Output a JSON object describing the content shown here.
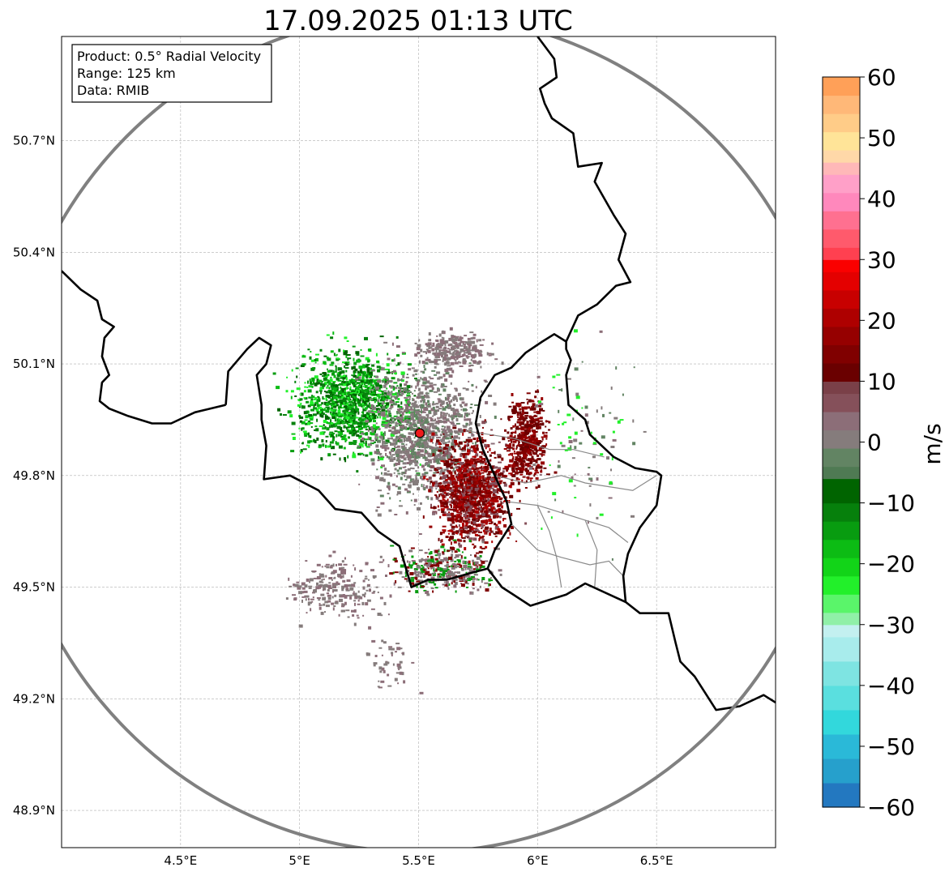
{
  "title": "17.09.2025 01:13 UTC",
  "info_box": {
    "product": "Product: 0.5° Radial Velocity",
    "range": "Range: 125 km",
    "data": "Data: RMIB"
  },
  "map": {
    "lon_range": [
      4.0,
      7.0
    ],
    "lat_range": [
      48.8,
      50.98
    ],
    "radar_site": {
      "lon": 5.505,
      "lat": 49.914
    },
    "range_ring_km": 125,
    "x_ticks": [
      {
        "value": 4.5,
        "label": "4.5°E"
      },
      {
        "value": 5.0,
        "label": "5°E"
      },
      {
        "value": 5.5,
        "label": "5.5°E"
      },
      {
        "value": 6.0,
        "label": "6°E"
      },
      {
        "value": 6.5,
        "label": "6.5°E"
      }
    ],
    "y_ticks": [
      {
        "value": 50.7,
        "label": "50.7°N"
      },
      {
        "value": 50.4,
        "label": "50.4°N"
      },
      {
        "value": 50.1,
        "label": "50.1°N"
      },
      {
        "value": 49.8,
        "label": "49.8°N"
      },
      {
        "value": 49.5,
        "label": "49.5°N"
      },
      {
        "value": 49.2,
        "label": "49.2°N"
      },
      {
        "value": 48.9,
        "label": "48.9°N"
      }
    ],
    "borders": [
      [
        [
          4.0,
          50.35
        ],
        [
          4.08,
          50.3
        ],
        [
          4.15,
          50.27
        ],
        [
          4.17,
          50.22
        ],
        [
          4.22,
          50.2
        ],
        [
          4.18,
          50.17
        ],
        [
          4.17,
          50.12
        ],
        [
          4.2,
          50.07
        ],
        [
          4.17,
          50.05
        ],
        [
          4.16,
          50.0
        ],
        [
          4.2,
          49.98
        ],
        [
          4.28,
          49.96
        ],
        [
          4.38,
          49.94
        ],
        [
          4.46,
          49.94
        ],
        [
          4.56,
          49.97
        ],
        [
          4.69,
          49.99
        ]
      ],
      [
        [
          4.69,
          49.99
        ],
        [
          4.7,
          50.08
        ],
        [
          4.78,
          50.14
        ],
        [
          4.83,
          50.17
        ],
        [
          4.88,
          50.15
        ],
        [
          4.86,
          50.1
        ],
        [
          4.82,
          50.07
        ],
        [
          4.84,
          49.99
        ],
        [
          4.84,
          49.95
        ],
        [
          4.86,
          49.88
        ],
        [
          4.85,
          49.79
        ],
        [
          4.96,
          49.8
        ],
        [
          5.08,
          49.76
        ],
        [
          5.15,
          49.71
        ],
        [
          5.26,
          49.7
        ],
        [
          5.33,
          49.65
        ],
        [
          5.42,
          49.61
        ],
        [
          5.47,
          49.5
        ],
        [
          5.54,
          49.52
        ],
        [
          5.62,
          49.52
        ],
        [
          5.73,
          49.54
        ],
        [
          5.79,
          49.55
        ],
        [
          5.85,
          49.5
        ],
        [
          5.97,
          49.45
        ],
        [
          6.12,
          49.48
        ],
        [
          6.2,
          49.51
        ],
        [
          6.37,
          49.46
        ],
        [
          6.43,
          49.43
        ],
        [
          6.55,
          49.43
        ],
        [
          6.58,
          49.35
        ],
        [
          6.6,
          49.3
        ],
        [
          6.66,
          49.26
        ],
        [
          6.7,
          49.22
        ],
        [
          6.75,
          49.17
        ],
        [
          6.85,
          49.18
        ],
        [
          6.95,
          49.21
        ],
        [
          7.0,
          49.19
        ]
      ],
      [
        [
          5.79,
          49.55
        ],
        [
          5.82,
          49.6
        ],
        [
          5.89,
          49.67
        ],
        [
          5.87,
          49.73
        ],
        [
          5.82,
          49.8
        ],
        [
          5.77,
          49.87
        ],
        [
          5.74,
          49.94
        ],
        [
          5.76,
          50.01
        ],
        [
          5.82,
          50.07
        ],
        [
          5.89,
          50.09
        ],
        [
          5.95,
          50.13
        ],
        [
          6.02,
          50.16
        ],
        [
          6.07,
          50.18
        ],
        [
          6.12,
          50.16
        ],
        [
          6.12,
          50.14
        ],
        [
          6.14,
          50.11
        ],
        [
          6.12,
          50.07
        ],
        [
          6.13,
          49.99
        ],
        [
          6.2,
          49.95
        ],
        [
          6.22,
          49.91
        ],
        [
          6.32,
          49.85
        ],
        [
          6.41,
          49.82
        ],
        [
          6.5,
          49.81
        ],
        [
          6.52,
          49.8
        ],
        [
          6.5,
          49.72
        ],
        [
          6.43,
          49.66
        ],
        [
          6.38,
          49.59
        ],
        [
          6.36,
          49.53
        ],
        [
          6.37,
          49.46
        ]
      ],
      [
        [
          6.12,
          50.16
        ],
        [
          6.17,
          50.23
        ],
        [
          6.25,
          50.26
        ],
        [
          6.33,
          50.31
        ],
        [
          6.39,
          50.32
        ],
        [
          6.34,
          50.38
        ],
        [
          6.37,
          50.45
        ],
        [
          6.32,
          50.5
        ],
        [
          6.24,
          50.59
        ],
        [
          6.27,
          50.64
        ],
        [
          6.17,
          50.63
        ],
        [
          6.15,
          50.72
        ],
        [
          6.06,
          50.76
        ],
        [
          6.03,
          50.8
        ],
        [
          6.01,
          50.84
        ],
        [
          6.08,
          50.87
        ],
        [
          6.07,
          50.92
        ],
        [
          6.0,
          50.98
        ]
      ]
    ],
    "province_lines": [
      [
        [
          5.7,
          49.92
        ],
        [
          5.9,
          49.9
        ],
        [
          6.05,
          49.87
        ],
        [
          6.15,
          49.87
        ],
        [
          6.28,
          49.85
        ]
      ],
      [
        [
          5.82,
          49.8
        ],
        [
          5.95,
          49.78
        ],
        [
          6.1,
          49.8
        ],
        [
          6.2,
          49.78
        ],
        [
          6.3,
          49.77
        ],
        [
          6.4,
          49.76
        ],
        [
          6.5,
          49.8
        ]
      ],
      [
        [
          5.87,
          49.73
        ],
        [
          6.0,
          49.72
        ],
        [
          6.1,
          49.7
        ],
        [
          6.2,
          49.68
        ],
        [
          6.3,
          49.66
        ],
        [
          6.38,
          49.62
        ]
      ],
      [
        [
          6.0,
          49.72
        ],
        [
          6.05,
          49.65
        ],
        [
          6.08,
          49.58
        ],
        [
          6.1,
          49.5
        ]
      ],
      [
        [
          6.2,
          49.68
        ],
        [
          6.25,
          49.6
        ],
        [
          6.24,
          49.5
        ]
      ],
      [
        [
          5.89,
          49.67
        ],
        [
          6.0,
          49.6
        ],
        [
          6.1,
          49.58
        ],
        [
          6.22,
          49.56
        ],
        [
          6.3,
          49.57
        ],
        [
          6.36,
          49.53
        ]
      ]
    ]
  },
  "colorbar": {
    "label": "m/s",
    "vmin": -60,
    "vmax": 60,
    "ticks": [
      {
        "value": 60,
        "label": "60"
      },
      {
        "value": 50,
        "label": "50"
      },
      {
        "value": 40,
        "label": "40"
      },
      {
        "value": 30,
        "label": "30"
      },
      {
        "value": 20,
        "label": "20"
      },
      {
        "value": 10,
        "label": "10"
      },
      {
        "value": 0,
        "label": "0"
      },
      {
        "value": -10,
        "label": "−10"
      },
      {
        "value": -20,
        "label": "−20"
      },
      {
        "value": -30,
        "label": "−30"
      },
      {
        "value": -40,
        "label": "−40"
      },
      {
        "value": -50,
        "label": "−50"
      },
      {
        "value": -60,
        "label": "−60"
      }
    ],
    "bands": [
      {
        "from": -60,
        "to": -56,
        "color": "#2378c0"
      },
      {
        "from": -56,
        "to": -52,
        "color": "#26a0cc"
      },
      {
        "from": -52,
        "to": -48,
        "color": "#2ab9d8"
      },
      {
        "from": -48,
        "to": -44,
        "color": "#32d8dc"
      },
      {
        "from": -44,
        "to": -40,
        "color": "#5adfdf"
      },
      {
        "from": -40,
        "to": -36,
        "color": "#7ee4e2"
      },
      {
        "from": -36,
        "to": -32,
        "color": "#a8ecec"
      },
      {
        "from": -32,
        "to": -30,
        "color": "#c3f0f0"
      },
      {
        "from": -30,
        "to": -28,
        "color": "#90f0a8"
      },
      {
        "from": -28,
        "to": -25,
        "color": "#5af56a"
      },
      {
        "from": -25,
        "to": -22,
        "color": "#22f02a"
      },
      {
        "from": -22,
        "to": -19,
        "color": "#12d418"
      },
      {
        "from": -19,
        "to": -16,
        "color": "#0cbc14"
      },
      {
        "from": -16,
        "to": -13,
        "color": "#089c10"
      },
      {
        "from": -13,
        "to": -10,
        "color": "#06800c"
      },
      {
        "from": -10,
        "to": -6,
        "color": "#006400"
      },
      {
        "from": -6,
        "to": -4,
        "color": "#4f7a53"
      },
      {
        "from": -4,
        "to": -1,
        "color": "#628463"
      },
      {
        "from": -1,
        "to": 2,
        "color": "#857c7c"
      },
      {
        "from": 2,
        "to": 5,
        "color": "#8c6e78"
      },
      {
        "from": 5,
        "to": 8,
        "color": "#85505a"
      },
      {
        "from": 8,
        "to": 10,
        "color": "#7a4048"
      },
      {
        "from": 10,
        "to": 13,
        "color": "#6a0000"
      },
      {
        "from": 13,
        "to": 16,
        "color": "#800000"
      },
      {
        "from": 16,
        "to": 19,
        "color": "#960000"
      },
      {
        "from": 19,
        "to": 22,
        "color": "#ae0000"
      },
      {
        "from": 22,
        "to": 25,
        "color": "#c80000"
      },
      {
        "from": 25,
        "to": 28,
        "color": "#e40000"
      },
      {
        "from": 28,
        "to": 30,
        "color": "#fa0000"
      },
      {
        "from": 30,
        "to": 32,
        "color": "#ff4050"
      },
      {
        "from": 32,
        "to": 35,
        "color": "#ff5a6c"
      },
      {
        "from": 35,
        "to": 38,
        "color": "#ff7090"
      },
      {
        "from": 38,
        "to": 41,
        "color": "#ff88bc"
      },
      {
        "from": 41,
        "to": 44,
        "color": "#ffa0c8"
      },
      {
        "from": 44,
        "to": 46,
        "color": "#ffb8b8"
      },
      {
        "from": 46,
        "to": 48,
        "color": "#ffd8a8"
      },
      {
        "from": 48,
        "to": 51,
        "color": "#ffe498"
      },
      {
        "from": 51,
        "to": 54,
        "color": "#ffcc88"
      },
      {
        "from": 54,
        "to": 57,
        "color": "#ffb878"
      },
      {
        "from": 57,
        "to": 60,
        "color": "#ffa058"
      }
    ]
  },
  "echo_clusters": [
    {
      "name": "green-inbound-northwest",
      "lon": 5.22,
      "lat": 50.0,
      "sx": 0.2,
      "sy": 0.11,
      "n": 1300,
      "colors": [
        "#006400",
        "#06800c",
        "#089c10",
        "#0cbc14",
        "#22f02a"
      ]
    },
    {
      "name": "gray-zero-center",
      "lon": 5.52,
      "lat": 49.92,
      "sx": 0.19,
      "sy": 0.15,
      "n": 1200,
      "colors": [
        "#857c7c",
        "#8c6e78",
        "#857c7c",
        "#628463"
      ]
    },
    {
      "name": "gray-north-band",
      "lon": 5.65,
      "lat": 50.14,
      "sx": 0.12,
      "sy": 0.04,
      "n": 250,
      "colors": [
        "#857c7c",
        "#8c6e78"
      ]
    },
    {
      "name": "red-outbound-southeast",
      "lon": 5.72,
      "lat": 49.76,
      "sx": 0.13,
      "sy": 0.12,
      "n": 1300,
      "colors": [
        "#6a0000",
        "#800000",
        "#960000",
        "#ae0000",
        "#85505a"
      ]
    },
    {
      "name": "red-outbound-east",
      "lon": 5.95,
      "lat": 49.9,
      "sx": 0.07,
      "sy": 0.09,
      "n": 500,
      "colors": [
        "#800000",
        "#6a0000",
        "#960000"
      ]
    },
    {
      "name": "mixed-south",
      "lon": 5.6,
      "lat": 49.55,
      "sx": 0.18,
      "sy": 0.05,
      "n": 380,
      "colors": [
        "#8c6e78",
        "#857c7c",
        "#800000",
        "#089c10"
      ]
    },
    {
      "name": "gray-southwest",
      "lon": 5.15,
      "lat": 49.5,
      "sx": 0.17,
      "sy": 0.07,
      "n": 230,
      "colors": [
        "#8c6e78",
        "#857c7c"
      ]
    },
    {
      "name": "gray-far-south",
      "lon": 5.38,
      "lat": 49.3,
      "sx": 0.09,
      "sy": 0.07,
      "n": 50,
      "colors": [
        "#8c6e78",
        "#857c7c"
      ]
    },
    {
      "name": "speckle-east",
      "lon": 6.2,
      "lat": 49.9,
      "sx": 0.2,
      "sy": 0.22,
      "n": 100,
      "colors": [
        "#857c7c",
        "#628463",
        "#8c6e78",
        "#22f02a"
      ]
    }
  ]
}
